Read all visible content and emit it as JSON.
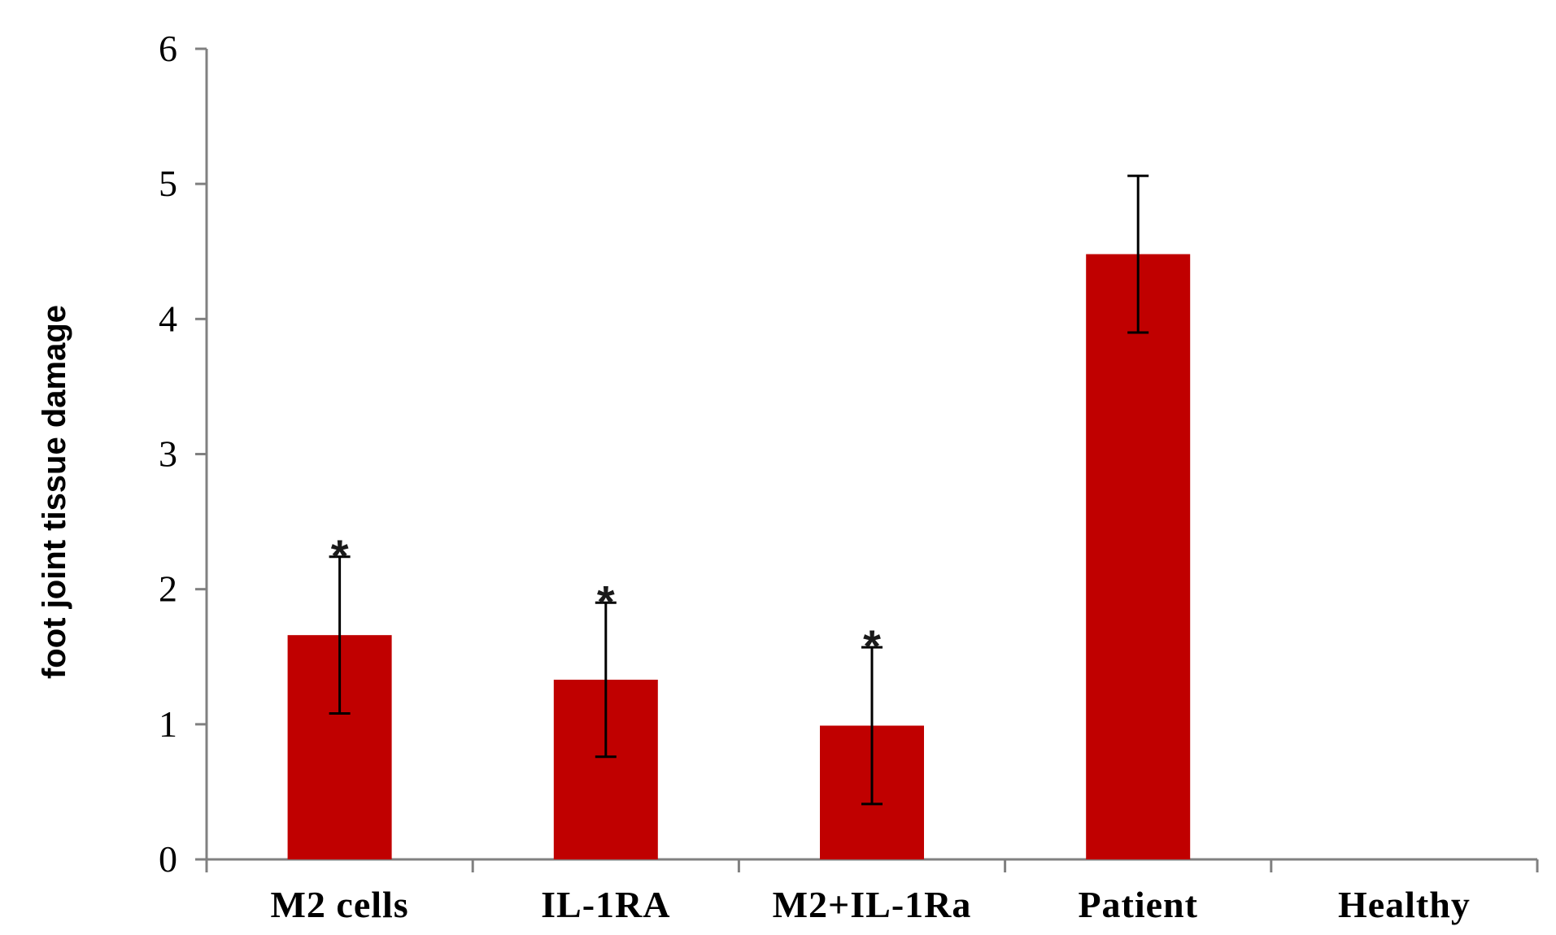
{
  "chart_data": {
    "type": "bar",
    "title": "",
    "xlabel": "",
    "ylabel": "foot joint tissue damage",
    "categories": [
      "M2 cells",
      "IL-1RA",
      "M2+IL-1Ra",
      "Patient",
      "Healthy"
    ],
    "values": [
      1.66,
      1.33,
      0.99,
      4.48,
      0
    ],
    "errors": [
      0.58,
      0.57,
      0.58,
      0.58,
      0
    ],
    "significance": [
      "*",
      "*",
      "*",
      "",
      ""
    ],
    "ylim": [
      0,
      6
    ],
    "yticks": [
      0,
      1,
      2,
      3,
      4,
      5,
      6
    ],
    "grid": false,
    "legend": "none"
  },
  "colors": {
    "bar": "#C00000",
    "axis": "#808080",
    "error_bar": "#000000",
    "significance": "#1a1a1a"
  }
}
